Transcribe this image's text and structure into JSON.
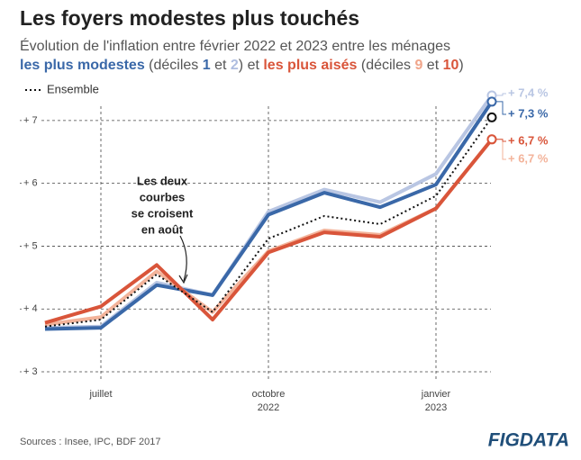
{
  "chart_data": {
    "type": "line",
    "title": "Les foyers modestes plus touchés",
    "subtitle": "Évolution de l'inflation entre février 2022 et 2023 entre les ménages",
    "subtitle_parts": [
      {
        "text": "les plus modestes",
        "color": "#3a68a8",
        "bold": true
      },
      {
        "text": " (déciles ",
        "color": "#555555",
        "bold": false
      },
      {
        "text": "1",
        "color": "#3a68a8",
        "bold": true
      },
      {
        "text": " et ",
        "color": "#555555",
        "bold": false
      },
      {
        "text": "2",
        "color": "#aebde0",
        "bold": true
      },
      {
        "text": ") et ",
        "color": "#555555",
        "bold": false
      },
      {
        "text": "les plus aisés",
        "color": "#d9553a",
        "bold": true
      },
      {
        "text": " (déciles ",
        "color": "#555555",
        "bold": false
      },
      {
        "text": "9",
        "color": "#f0a58a",
        "bold": true
      },
      {
        "text": " et ",
        "color": "#555555",
        "bold": false
      },
      {
        "text": "10",
        "color": "#d9553a",
        "bold": true
      },
      {
        "text": ")",
        "color": "#555555",
        "bold": false
      }
    ],
    "categories": [
      null,
      "juillet",
      null,
      null,
      "octobre",
      null,
      null,
      "janvier",
      null
    ],
    "category_years": [
      null,
      null,
      null,
      null,
      "2022",
      null,
      null,
      "2023",
      null
    ],
    "series": [
      {
        "color": "#b9c6e3",
        "values": [
          3.7,
          3.72,
          4.42,
          4.22,
          5.55,
          5.9,
          5.7,
          6.15,
          7.4
        ],
        "end_label": "+ 7,4 %"
      },
      {
        "color": "#3a68a8",
        "values": [
          3.68,
          3.7,
          4.38,
          4.22,
          5.5,
          5.85,
          5.62,
          5.98,
          7.3
        ],
        "end_label": "+ 7,3 %"
      },
      {
        "color": "#f3b39a",
        "values": [
          3.75,
          3.87,
          4.6,
          3.95,
          4.92,
          5.25,
          5.18,
          5.6,
          6.7
        ],
        "end_label": "+ 6,7 %"
      },
      {
        "color": "#d9553a",
        "values": [
          3.78,
          4.04,
          4.7,
          3.83,
          4.9,
          5.22,
          5.15,
          5.6,
          6.7
        ],
        "end_label": "+ 6,7 %"
      },
      {
        "name": "Ensemble",
        "color": "#111111",
        "dashed": true,
        "values": [
          3.72,
          3.83,
          4.55,
          3.95,
          5.12,
          5.48,
          5.35,
          5.8,
          7.05
        ]
      }
    ],
    "ylim": [
      3,
      7.6
    ],
    "yticks": [
      {
        "value": 3,
        "label": "+ 3"
      },
      {
        "value": 4,
        "label": "+ 4"
      },
      {
        "value": 5,
        "label": "+ 5"
      },
      {
        "value": 6,
        "label": "+ 6"
      },
      {
        "value": 7,
        "label": "+ 7"
      }
    ],
    "grid": true,
    "legend": "top-left",
    "annotation": [
      "Les deux",
      "courbes",
      "se croisent",
      "en août"
    ],
    "source": "Sources : Insee, IPC, BDF 2017",
    "logo": "FIGDATA"
  }
}
